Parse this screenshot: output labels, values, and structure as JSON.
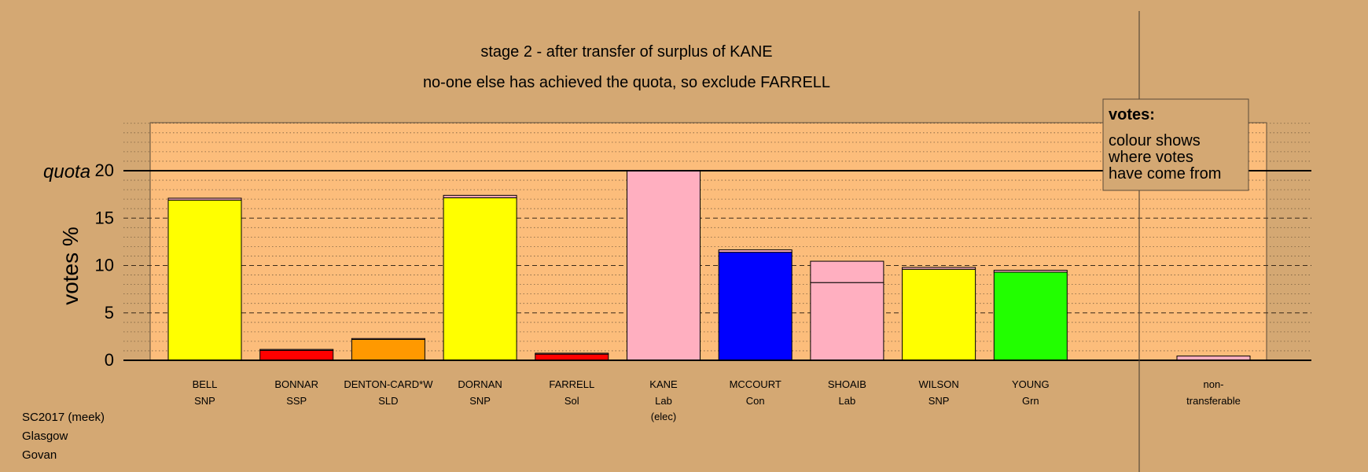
{
  "chart_data": {
    "type": "bar",
    "title": "stage 2 - after transfer of surplus of KANE",
    "subtitle": "no-one else has achieved the quota, so exclude FARRELL",
    "ylabel": "votes %",
    "quota_label": "quota",
    "quota": 20,
    "ylim": [
      0,
      20
    ],
    "yticks": [
      "0",
      "5",
      "10",
      "15",
      "20"
    ],
    "grid": "dashed every 5, dotted every 1",
    "legend": {
      "title": "votes:",
      "lines": [
        "colour shows",
        "where votes",
        "have come from"
      ],
      "position": "top-right"
    },
    "colors": {
      "background": "#d4a873",
      "plot": "#fcbd7b",
      "SNP": "#ffff00",
      "SSP": "#ff0000",
      "SLD": "#ff9900",
      "Sol": "#ff0000",
      "Lab": "#ffafc0",
      "Con": "#0000ff",
      "Grn": "#22ff00"
    },
    "candidates": [
      {
        "name": "BELL",
        "party": "SNP",
        "note": "",
        "segments": [
          {
            "from": "SNP",
            "value": 16.9
          },
          {
            "from": "Lab",
            "value": 0.2
          }
        ]
      },
      {
        "name": "BONNAR",
        "party": "SSP",
        "note": "",
        "segments": [
          {
            "from": "SSP",
            "value": 1.05
          },
          {
            "from": "Lab",
            "value": 0.1
          }
        ]
      },
      {
        "name": "DENTON-CARD*W",
        "party": "SLD",
        "note": "",
        "segments": [
          {
            "from": "SLD",
            "value": 2.2
          },
          {
            "from": "Lab",
            "value": 0.1
          }
        ]
      },
      {
        "name": "DORNAN",
        "party": "SNP",
        "note": "",
        "segments": [
          {
            "from": "SNP",
            "value": 17.15
          },
          {
            "from": "Lab",
            "value": 0.25
          }
        ]
      },
      {
        "name": "FARRELL",
        "party": "Sol",
        "note": "",
        "segments": [
          {
            "from": "Sol",
            "value": 0.65
          },
          {
            "from": "Lab",
            "value": 0.1
          }
        ]
      },
      {
        "name": "KANE",
        "party": "Lab",
        "note": "(elec)",
        "segments": [
          {
            "from": "Lab",
            "value": 20
          }
        ]
      },
      {
        "name": "MCCOURT",
        "party": "Con",
        "note": "",
        "segments": [
          {
            "from": "Con",
            "value": 11.4
          },
          {
            "from": "Lab",
            "value": 0.25
          }
        ]
      },
      {
        "name": "SHOAIB",
        "party": "Lab",
        "note": "",
        "segments": [
          {
            "from": "Lab",
            "value": 8.2
          },
          {
            "from": "Lab",
            "value": 2.25
          }
        ]
      },
      {
        "name": "WILSON",
        "party": "SNP",
        "note": "",
        "segments": [
          {
            "from": "SNP",
            "value": 9.6
          },
          {
            "from": "Lab",
            "value": 0.2
          }
        ]
      },
      {
        "name": "YOUNG",
        "party": "Grn",
        "note": "",
        "segments": [
          {
            "from": "Grn",
            "value": 9.3
          },
          {
            "from": "Lab",
            "value": 0.2
          }
        ]
      }
    ],
    "nontransferable": {
      "label1": "non-",
      "label2": "transferable",
      "value": 0.45,
      "from": "Lab"
    }
  },
  "source": {
    "line1": "SC2017 (meek)",
    "line2": "Glasgow",
    "line3": "Govan"
  }
}
